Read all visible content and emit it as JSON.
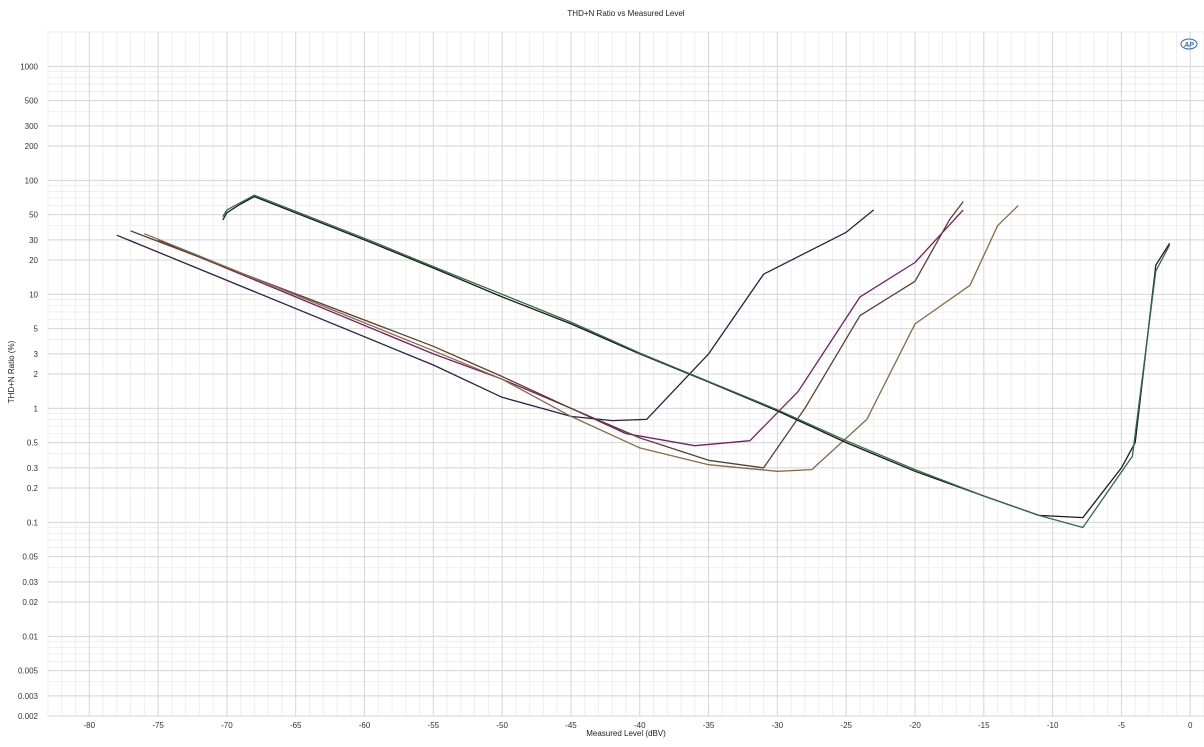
{
  "chart_data": {
    "type": "line",
    "title": "THD+N Ratio vs Measured Level",
    "xlabel": "Measured Level (dBV)",
    "ylabel": "THD+N Ratio (%)",
    "x_scale": "linear",
    "y_scale": "log",
    "xlim": [
      -83,
      1
    ],
    "ylim": [
      0.002,
      2000
    ],
    "grid": true,
    "legend": "none",
    "x_ticks": [
      -80,
      -75,
      -70,
      -65,
      -60,
      -55,
      -50,
      -45,
      -40,
      -35,
      -30,
      -25,
      -20,
      -15,
      -10,
      -5,
      0
    ],
    "y_ticks": [
      {
        "v": 1000,
        "label": "1000"
      },
      {
        "v": 500,
        "label": "500"
      },
      {
        "v": 300,
        "label": "300"
      },
      {
        "v": 200,
        "label": "200"
      },
      {
        "v": 100,
        "label": "100"
      },
      {
        "v": 50,
        "label": "50"
      },
      {
        "v": 30,
        "label": "30"
      },
      {
        "v": 20,
        "label": "20"
      },
      {
        "v": 10,
        "label": "10"
      },
      {
        "v": 5,
        "label": "5"
      },
      {
        "v": 3,
        "label": "3"
      },
      {
        "v": 2,
        "label": "2"
      },
      {
        "v": 1,
        "label": "1"
      },
      {
        "v": 0.5,
        "label": "0.5"
      },
      {
        "v": 0.3,
        "label": "0.3"
      },
      {
        "v": 0.2,
        "label": "0.2"
      },
      {
        "v": 0.1,
        "label": "0.1"
      },
      {
        "v": 0.05,
        "label": "0.05"
      },
      {
        "v": 0.03,
        "label": "0.03"
      },
      {
        "v": 0.02,
        "label": "0.02"
      },
      {
        "v": 0.01,
        "label": "0.01"
      },
      {
        "v": 0.005,
        "label": "0.005"
      },
      {
        "v": 0.003,
        "label": "0.003"
      },
      {
        "v": 0.002,
        "label": "0.002"
      }
    ],
    "series": [
      {
        "color": "#2d1f4a",
        "points": [
          [
            -78,
            33
          ],
          [
            -55,
            2.4
          ],
          [
            -50,
            1.25
          ],
          [
            -45,
            0.85
          ],
          [
            -42,
            0.78
          ],
          [
            -39.5,
            0.8
          ],
          [
            -35,
            3
          ],
          [
            -31,
            15
          ],
          [
            -25,
            35
          ],
          [
            -23,
            55
          ]
        ]
      },
      {
        "color": "#7a1a6e",
        "points": [
          [
            -75,
            30
          ],
          [
            -55,
            3
          ],
          [
            -50,
            1.8
          ],
          [
            -45,
            1.0
          ],
          [
            -41,
            0.6
          ],
          [
            -36,
            0.47
          ],
          [
            -32,
            0.52
          ],
          [
            -28.5,
            1.4
          ],
          [
            -24,
            9.5
          ],
          [
            -20,
            19
          ],
          [
            -16.5,
            55
          ]
        ]
      },
      {
        "color": "#5a4030",
        "points": [
          [
            -77,
            36
          ],
          [
            -55,
            3.5
          ],
          [
            -50,
            1.9
          ],
          [
            -45,
            1.0
          ],
          [
            -40,
            0.55
          ],
          [
            -35,
            0.35
          ],
          [
            -31,
            0.3
          ],
          [
            -28,
            1.0
          ],
          [
            -24,
            6.5
          ],
          [
            -20,
            13
          ],
          [
            -17.5,
            45
          ],
          [
            -16.5,
            65
          ]
        ]
      },
      {
        "color": "#8a6a40",
        "points": [
          [
            -76,
            34
          ],
          [
            -55,
            3.2
          ],
          [
            -50,
            1.8
          ],
          [
            -45,
            0.85
          ],
          [
            -40,
            0.45
          ],
          [
            -35,
            0.32
          ],
          [
            -30,
            0.28
          ],
          [
            -27.5,
            0.29
          ],
          [
            -23.5,
            0.8
          ],
          [
            -20,
            5.5
          ],
          [
            -16,
            12
          ],
          [
            -14,
            40
          ],
          [
            -12.5,
            60
          ]
        ]
      },
      {
        "color": "#1a1a1a",
        "points": [
          [
            -70.3,
            45
          ],
          [
            -70,
            52
          ],
          [
            -69,
            62
          ],
          [
            -68,
            72
          ],
          [
            -60,
            30
          ],
          [
            -55,
            17
          ],
          [
            -50,
            9.5
          ],
          [
            -45,
            5.5
          ],
          [
            -40,
            3
          ],
          [
            -35,
            1.7
          ],
          [
            -30,
            0.95
          ],
          [
            -25,
            0.5
          ],
          [
            -20,
            0.28
          ],
          [
            -15,
            0.17
          ],
          [
            -11,
            0.115
          ],
          [
            -7.8,
            0.11
          ],
          [
            -5,
            0.3
          ],
          [
            -4,
            0.5
          ],
          [
            -2.5,
            18
          ],
          [
            -1.5,
            28
          ]
        ]
      },
      {
        "color": "#2e6b4a",
        "points": [
          [
            -70.3,
            48
          ],
          [
            -70,
            55
          ],
          [
            -68,
            74
          ],
          [
            -60,
            31
          ],
          [
            -55,
            17.5
          ],
          [
            -50,
            10
          ],
          [
            -45,
            5.7
          ],
          [
            -40,
            3.05
          ],
          [
            -35,
            1.72
          ],
          [
            -30,
            0.97
          ],
          [
            -25,
            0.52
          ],
          [
            -20,
            0.29
          ],
          [
            -15,
            0.17
          ],
          [
            -11,
            0.115
          ],
          [
            -7.8,
            0.09
          ],
          [
            -4.2,
            0.38
          ],
          [
            -2.5,
            16
          ],
          [
            -1.5,
            27
          ]
        ]
      }
    ]
  },
  "brand": {
    "logo_text": "AP"
  }
}
